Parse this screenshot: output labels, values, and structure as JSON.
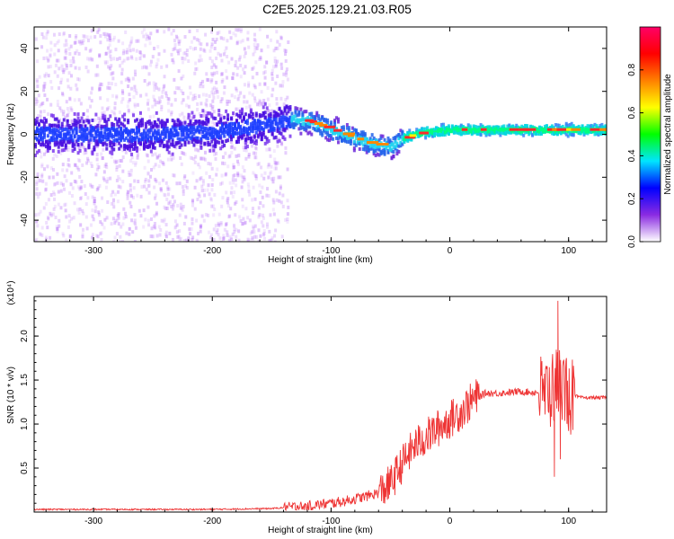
{
  "title": "C2E5.2025.129.21.03.R05",
  "chart_data": [
    {
      "type": "heatmap",
      "xlabel": "Height of straight line (km)",
      "ylabel": "Frequency (Hz)",
      "xlim": [
        -350,
        132
      ],
      "ylim": [
        -50,
        50
      ],
      "x_ticks": [
        -300,
        -200,
        -100,
        0,
        100
      ],
      "y_ticks": [
        -40,
        -20,
        0,
        20,
        40
      ],
      "colorbar": {
        "label": "Normalized spectral amplitude",
        "range": [
          0,
          1
        ],
        "ticks": [
          0.0,
          0.2,
          0.4,
          0.6,
          0.8
        ],
        "colors": [
          "#ffffff",
          "#8a2be2",
          "#0000ff",
          "#00e5ff",
          "#00ff00",
          "#ffff00",
          "#ff8000",
          "#ff0000",
          "#ff0066"
        ]
      },
      "ridge": {
        "x": [
          -350,
          -250,
          -200,
          -150,
          -140,
          -130,
          -120,
          -100,
          -90,
          -80,
          -70,
          -60,
          -50,
          -40,
          -30,
          -20,
          0,
          30,
          60,
          100,
          132
        ],
        "y": [
          0,
          0,
          1,
          5,
          6,
          7,
          6,
          2,
          0,
          -2,
          -4,
          -5,
          -6,
          -2,
          0,
          1,
          2,
          2,
          2,
          2,
          2
        ]
      }
    },
    {
      "type": "line",
      "xlabel": "Height of straight line (km)",
      "ylabel": "SNR (10 * v/v)",
      "y_multiplier": "(x10⁴)",
      "xlim": [
        -350,
        132
      ],
      "ylim": [
        0,
        2.45
      ],
      "x_ticks": [
        -300,
        -200,
        -100,
        0,
        100
      ],
      "y_ticks": [
        0.5,
        1.0,
        1.5,
        2.0
      ],
      "series": [
        {
          "color": "#ee3333",
          "x": [
            -350,
            -300,
            -250,
            -200,
            -150,
            -120,
            -100,
            -90,
            -80,
            -70,
            -60,
            -50,
            -40,
            -30,
            -20,
            -10,
            0,
            10,
            20,
            30,
            40,
            50,
            60,
            70,
            80,
            85,
            90,
            95,
            100,
            105,
            110,
            120,
            132
          ],
          "y": [
            0.03,
            0.03,
            0.03,
            0.03,
            0.04,
            0.07,
            0.1,
            0.12,
            0.15,
            0.18,
            0.22,
            0.32,
            0.55,
            0.75,
            0.85,
            0.95,
            1.05,
            1.15,
            1.28,
            1.35,
            1.35,
            1.36,
            1.37,
            1.36,
            1.36,
            1.38,
            1.45,
            1.5,
            1.3,
            1.32,
            1.3,
            1.3,
            1.3
          ],
          "spikes": {
            "x": [
              88,
              91,
              93
            ],
            "y": [
              0.4,
              2.4,
              0.6
            ]
          }
        }
      ]
    }
  ]
}
